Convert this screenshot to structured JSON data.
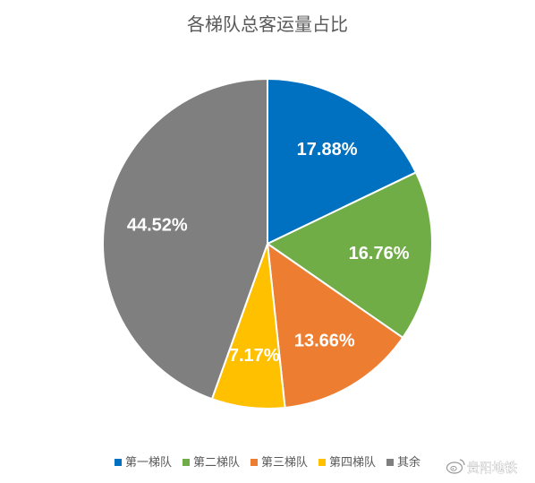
{
  "chart_data": {
    "type": "pie",
    "title": "各梯队总客运量占比",
    "unit": "%",
    "categories": [
      "第一梯队",
      "第二梯队",
      "第三梯队",
      "第四梯队",
      "其余"
    ],
    "values": [
      17.88,
      16.76,
      13.66,
      7.17,
      44.52
    ],
    "data_labels": [
      "17.88%",
      "16.76%",
      "13.66%",
      "7.17%",
      "44.52%"
    ],
    "colors": [
      "#0070C0",
      "#70AD47",
      "#ED7D31",
      "#FFC000",
      "#7F7F7F"
    ],
    "start_angle": "12 o'clock",
    "direction": "clockwise",
    "legend_position": "bottom"
  },
  "watermark": {
    "text": "贵阳地铁",
    "icon": "weibo-icon"
  }
}
